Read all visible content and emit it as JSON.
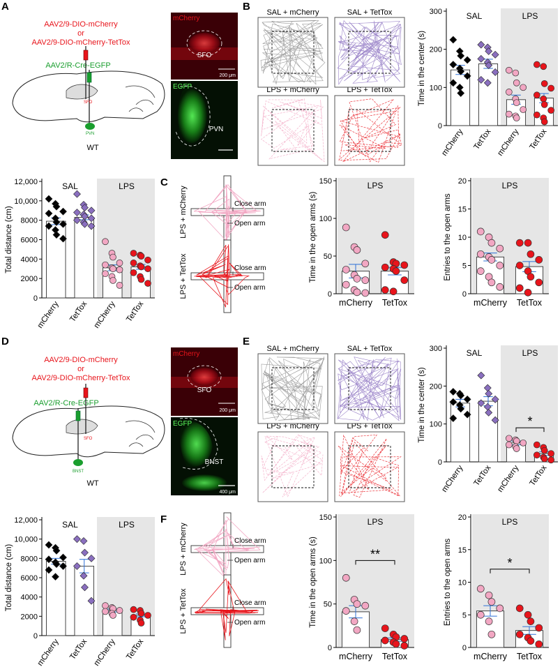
{
  "figure": {
    "panel_letters": [
      "A",
      "B",
      "C",
      "D",
      "E",
      "F"
    ],
    "schematic_top": {
      "virus1": "AAV2/9-DIO-mCherry",
      "or_text": "or",
      "virus2": "AAV2/9-DIO-mCherry-TetTox",
      "virus3": "AAV2/R-Cre-EGFP",
      "site1": "SFO",
      "site2": "PVN",
      "mouse": "WT"
    },
    "schematic_bottom": {
      "virus1": "AAV2/9-DIO-mCherry",
      "or_text": "or",
      "virus2": "AAV2/9-DIO-mCherry-TetTox",
      "virus3": "AAV2/R-Cre-EGFP",
      "site1": "SFO",
      "site2": "BNST",
      "mouse": "WT"
    },
    "histology_top": {
      "ch1": "mCherry",
      "region1": "SFO",
      "scale1": "200 μm",
      "ch2": "EGFP",
      "region2": "PVN"
    },
    "histology_bottom": {
      "ch1": "mCherry",
      "region1": "SFO",
      "scale1": "200 μm",
      "ch2": "EGFP",
      "region2": "BNST",
      "scale2": "400 μm"
    },
    "openfield_top": [
      "SAL + mCherry",
      "SAL + TetTox",
      "LPS + mCherry",
      "LPS + TetTox"
    ],
    "openfield_bottom": [
      "SAL + mCherry",
      "SAL + TetTox",
      "LPS + mCherry",
      "LPS + TetTox"
    ],
    "epm_top": [
      "LPS + mCherry",
      "LPS + TetTox"
    ],
    "epm_bottom": [
      "LPS + mCherry",
      "LPS + TetTox"
    ],
    "close_arm": "Close arm",
    "open_arm": "Open arm",
    "colors": {
      "sal_mcherry": "#000000",
      "sal_tettox": "#8a6fbf",
      "lps_mcherry": "#f2a7c3",
      "lps_tettox": "#e8141b",
      "shade": "#e6e6e6",
      "virus_red": "#e8141b",
      "virus_green": "#1a9e2e",
      "err_blue": "#2d6fd6"
    }
  },
  "chart_data": [
    {
      "id": "B_center",
      "type": "bar",
      "ylabel": "Time in the center (s)",
      "ylim": [
        0,
        300
      ],
      "yticks": [
        0,
        100,
        200,
        300
      ],
      "groups": [
        "SAL",
        "LPS"
      ],
      "categories": [
        "mCherry",
        "TetTox",
        "mCherry",
        "TetTox"
      ],
      "values": [
        146,
        162,
        68,
        72
      ],
      "errors": [
        12,
        12,
        12,
        12
      ],
      "points": [
        [
          225,
          195,
          183,
          172,
          160,
          150,
          142,
          130,
          112,
          100,
          85
        ],
        [
          212,
          205,
          195,
          186,
          175,
          166,
          158,
          140,
          120,
          112
        ],
        [
          145,
          138,
          112,
          100,
          88,
          70,
          60,
          42,
          30,
          25,
          20
        ],
        [
          160,
          155,
          110,
          98,
          80,
          70,
          55,
          40,
          28,
          20,
          10
        ]
      ]
    },
    {
      "id": "A_distance",
      "type": "bar",
      "ylabel": "Total distance (cm)",
      "ylim": [
        0,
        12000
      ],
      "yticks": [
        0,
        2000,
        4000,
        6000,
        8000,
        10000,
        12000
      ],
      "ytick_labels": [
        "0",
        "2000",
        "4000",
        "6000",
        "8000",
        "10,000",
        "12,000"
      ],
      "groups": [
        "SAL",
        "LPS"
      ],
      "categories": [
        "mCherry",
        "TetTox",
        "mCherry",
        "TetTox"
      ],
      "values": [
        7900,
        8300,
        3100,
        3200
      ],
      "errors": [
        350,
        250,
        300,
        250
      ],
      "points": [
        [
          10200,
          9700,
          9400,
          8900,
          8700,
          8200,
          7800,
          7600,
          7400,
          7000,
          6500,
          6100
        ],
        [
          10700,
          9600,
          9300,
          9000,
          8800,
          8600,
          8400,
          8200,
          8000,
          7800,
          7600,
          7400
        ],
        [
          5800,
          4600,
          4200,
          3600,
          3400,
          3100,
          3000,
          2900,
          2500,
          2200,
          1800,
          1300
        ],
        [
          4600,
          4400,
          4300,
          3900,
          3600,
          3300,
          3200,
          3000,
          2600,
          2200,
          1900,
          1500
        ]
      ]
    },
    {
      "id": "C_time_open",
      "type": "bar",
      "title": "LPS",
      "ylabel": "Time in the open arms (s)",
      "ylim": [
        0,
        150
      ],
      "yticks": [
        0,
        50,
        100,
        150
      ],
      "categories": [
        "mCherry",
        "TetTox"
      ],
      "values": [
        30,
        30
      ],
      "errors": [
        9,
        5
      ],
      "points": [
        [
          88,
          62,
          58,
          40,
          32,
          25,
          20,
          18,
          12,
          5,
          2,
          1
        ],
        [
          78,
          42,
          40,
          38,
          35,
          33,
          30,
          18,
          5,
          3
        ]
      ]
    },
    {
      "id": "C_entries",
      "type": "bar",
      "title": "LPS",
      "ylabel": "Entries to the open arms",
      "ylim": [
        0,
        20
      ],
      "yticks": [
        0,
        5,
        10,
        15,
        20
      ],
      "categories": [
        "mCherry",
        "TetTox"
      ],
      "values": [
        6.5,
        4.8
      ],
      "errors": [
        0.7,
        0.9
      ],
      "points": [
        [
          11,
          10,
          9,
          8,
          7,
          6.5,
          6,
          5,
          4,
          3,
          2,
          1.2
        ],
        [
          9,
          9,
          7,
          6,
          5,
          4,
          3,
          2,
          1,
          0.2
        ]
      ]
    },
    {
      "id": "E_center",
      "type": "bar",
      "ylabel": "Time in the center (s)",
      "ylim": [
        0,
        300
      ],
      "yticks": [
        0,
        100,
        200,
        300
      ],
      "groups": [
        "SAL",
        "LPS"
      ],
      "categories": [
        "mCherry",
        "TetTox",
        "mCherry",
        "TetTox"
      ],
      "values": [
        155,
        160,
        50,
        22
      ],
      "errors": [
        10,
        12,
        5,
        5
      ],
      "points": [
        [
          185,
          180,
          175,
          165,
          158,
          150,
          140,
          125,
          115
        ],
        [
          228,
          195,
          180,
          165,
          155,
          145,
          130,
          110
        ],
        [
          62,
          58,
          55,
          50,
          45,
          40,
          35
        ],
        [
          45,
          38,
          30,
          22,
          18,
          12,
          8,
          5
        ]
      ],
      "sig": {
        "label": "*",
        "from": 2,
        "to": 3,
        "y": 90
      }
    },
    {
      "id": "D_distance",
      "type": "bar",
      "ylabel": "Total distance (cm)",
      "ylim": [
        0,
        12000
      ],
      "yticks": [
        0,
        2000,
        4000,
        6000,
        8000,
        10000,
        12000
      ],
      "ytick_labels": [
        "0",
        "2000",
        "4000",
        "6000",
        "8000",
        "10,000",
        "12,000"
      ],
      "groups": [
        "SAL",
        "LPS"
      ],
      "categories": [
        "mCherry",
        "TetTox",
        "mCherry",
        "TetTox"
      ],
      "values": [
        7700,
        7200,
        2600,
        2100
      ],
      "errors": [
        300,
        700,
        150,
        150
      ],
      "points": [
        [
          9400,
          9100,
          8800,
          8100,
          7900,
          7600,
          7400,
          7200,
          6800,
          6100
        ],
        [
          10000,
          9800,
          8600,
          8000,
          7200,
          6200,
          5000,
          3600
        ],
        [
          3100,
          2900,
          2800,
          2600,
          2500,
          2300,
          2100
        ],
        [
          2700,
          2600,
          2300,
          2100,
          1900,
          1600,
          1300
        ]
      ]
    },
    {
      "id": "F_time_open",
      "type": "bar",
      "title": "LPS",
      "ylabel": "Time in the open arms (s)",
      "ylim": [
        0,
        150
      ],
      "yticks": [
        0,
        50,
        100,
        150
      ],
      "categories": [
        "mCherry",
        "TetTox"
      ],
      "values": [
        41,
        9
      ],
      "errors": [
        7,
        2
      ],
      "points": [
        [
          80,
          55,
          50,
          48,
          42,
          30,
          20
        ],
        [
          22,
          15,
          12,
          10,
          8,
          6,
          4,
          2
        ]
      ],
      "sig": {
        "label": "**",
        "from": 0,
        "to": 1,
        "y": 100
      }
    },
    {
      "id": "F_entries",
      "type": "bar",
      "title": "LPS",
      "ylabel": "Entries to the open arms",
      "ylim": [
        0,
        20
      ],
      "yticks": [
        0,
        5,
        10,
        15,
        20
      ],
      "categories": [
        "mCherry",
        "TetTox"
      ],
      "values": [
        5.6,
        2.6
      ],
      "errors": [
        0.8,
        0.6
      ],
      "points": [
        [
          9,
          8,
          7,
          6,
          5,
          4,
          2
        ],
        [
          6,
          5,
          4,
          3,
          2,
          1.5,
          1,
          0.5
        ]
      ],
      "sig": {
        "label": "*",
        "from": 0,
        "to": 1,
        "y": 12
      }
    }
  ]
}
